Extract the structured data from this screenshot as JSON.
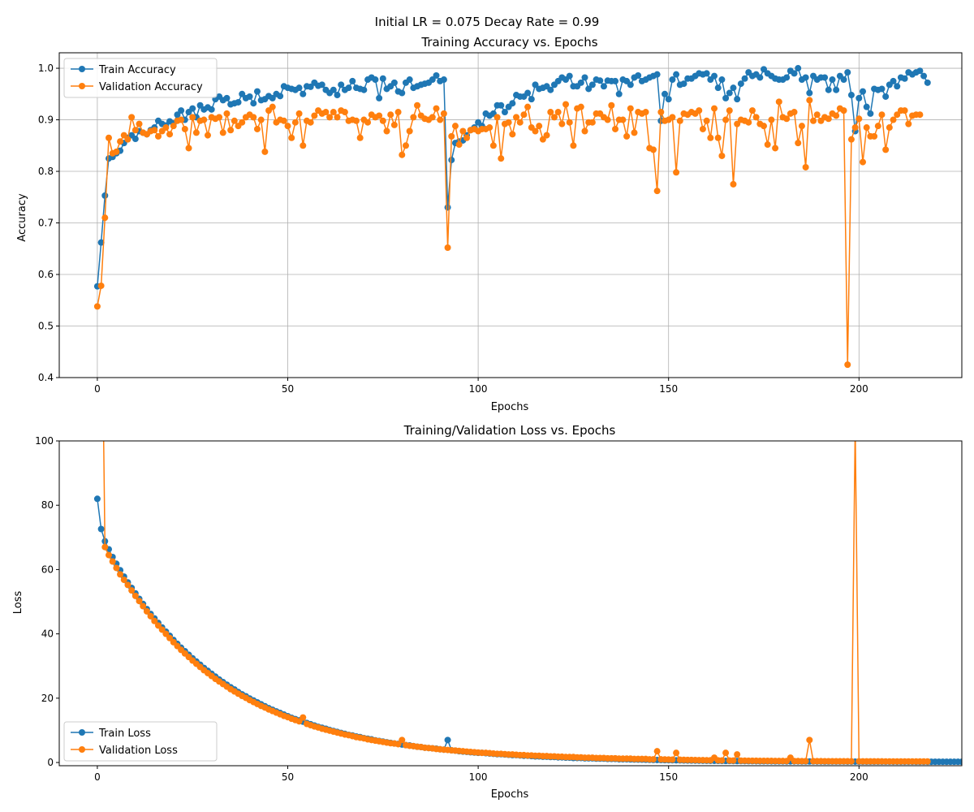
{
  "figure": {
    "suptitle": "Initial LR = 0.075 Decay Rate = 0.99"
  },
  "colors": {
    "train": "#1f77b4",
    "validation": "#ff7f0e",
    "grid": "#b0b0b0",
    "legend_border": "#cccccc"
  },
  "chart_data": [
    {
      "type": "line",
      "title": "Training Accuracy vs. Epochs",
      "xlabel": "Epochs",
      "ylabel": "Accuracy",
      "xlim": [
        -10,
        227
      ],
      "ylim": [
        0.4,
        1.03
      ],
      "xticks": [
        0,
        50,
        100,
        150,
        200
      ],
      "yticks": [
        0.4,
        0.5,
        0.6,
        0.7,
        0.8,
        0.9,
        1.0
      ],
      "ytick_labels": [
        "0.4",
        "0.5",
        "0.6",
        "0.7",
        "0.8",
        "0.9",
        "1.0"
      ],
      "grid": true,
      "legend_position": "upper-left",
      "x_start": 0,
      "series": [
        {
          "name": "Train Accuracy",
          "values": [
            0.577,
            0.662,
            0.753,
            0.825,
            0.828,
            0.835,
            0.84,
            0.855,
            0.865,
            0.87,
            0.863,
            0.878,
            0.875,
            0.872,
            0.88,
            0.885,
            0.898,
            0.892,
            0.889,
            0.897,
            0.893,
            0.91,
            0.918,
            0.9,
            0.915,
            0.922,
            0.905,
            0.928,
            0.92,
            0.924,
            0.92,
            0.94,
            0.945,
            0.938,
            0.942,
            0.93,
            0.932,
            0.934,
            0.95,
            0.942,
            0.945,
            0.932,
            0.955,
            0.938,
            0.94,
            0.946,
            0.942,
            0.95,
            0.946,
            0.965,
            0.962,
            0.96,
            0.958,
            0.962,
            0.95,
            0.965,
            0.964,
            0.972,
            0.966,
            0.968,
            0.958,
            0.952,
            0.958,
            0.948,
            0.968,
            0.958,
            0.962,
            0.975,
            0.962,
            0.96,
            0.958,
            0.978,
            0.982,
            0.978,
            0.942,
            0.98,
            0.96,
            0.965,
            0.972,
            0.955,
            0.952,
            0.972,
            0.978,
            0.962,
            0.965,
            0.968,
            0.97,
            0.972,
            0.978,
            0.986,
            0.975,
            0.978,
            0.73,
            0.822,
            0.855,
            0.858,
            0.86,
            0.87,
            0.88,
            0.885,
            0.895,
            0.888,
            0.912,
            0.908,
            0.912,
            0.928,
            0.928,
            0.915,
            0.925,
            0.932,
            0.948,
            0.945,
            0.945,
            0.952,
            0.94,
            0.968,
            0.96,
            0.962,
            0.965,
            0.958,
            0.968,
            0.975,
            0.982,
            0.978,
            0.985,
            0.965,
            0.965,
            0.972,
            0.982,
            0.96,
            0.968,
            0.978,
            0.976,
            0.965,
            0.976,
            0.975,
            0.975,
            0.95,
            0.978,
            0.975,
            0.968,
            0.982,
            0.986,
            0.975,
            0.978,
            0.982,
            0.985,
            0.988,
            0.898,
            0.95,
            0.94,
            0.978,
            0.988,
            0.968,
            0.97,
            0.98,
            0.98,
            0.985,
            0.99,
            0.988,
            0.99,
            0.978,
            0.985,
            0.962,
            0.978,
            0.942,
            0.952,
            0.962,
            0.94,
            0.97,
            0.98,
            0.992,
            0.985,
            0.988,
            0.982,
            0.998,
            0.99,
            0.985,
            0.98,
            0.978,
            0.978,
            0.982,
            0.995,
            0.99,
            1.0,
            0.978,
            0.982,
            0.952,
            0.985,
            0.978,
            0.982,
            0.982,
            0.958,
            0.978,
            0.958,
            0.985,
            0.978,
            0.992,
            0.948,
            0.878,
            0.942,
            0.955,
            0.925,
            0.912,
            0.96,
            0.958,
            0.96,
            0.945,
            0.968,
            0.975,
            0.965,
            0.982,
            0.98,
            0.992,
            0.988,
            0.992,
            0.995,
            0.985,
            0.972
          ]
        },
        {
          "name": "Validation Accuracy",
          "values": [
            0.538,
            0.578,
            0.71,
            0.865,
            0.835,
            0.838,
            0.858,
            0.87,
            0.862,
            0.905,
            0.88,
            0.892,
            0.875,
            0.872,
            0.878,
            0.88,
            0.868,
            0.878,
            0.885,
            0.872,
            0.888,
            0.898,
            0.9,
            0.882,
            0.845,
            0.905,
            0.875,
            0.898,
            0.9,
            0.87,
            0.905,
            0.902,
            0.905,
            0.875,
            0.912,
            0.88,
            0.898,
            0.888,
            0.895,
            0.905,
            0.91,
            0.905,
            0.882,
            0.9,
            0.838,
            0.918,
            0.925,
            0.895,
            0.9,
            0.898,
            0.888,
            0.865,
            0.895,
            0.912,
            0.85,
            0.898,
            0.895,
            0.908,
            0.918,
            0.912,
            0.915,
            0.905,
            0.915,
            0.905,
            0.918,
            0.915,
            0.898,
            0.9,
            0.898,
            0.865,
            0.9,
            0.895,
            0.91,
            0.905,
            0.908,
            0.898,
            0.878,
            0.91,
            0.89,
            0.915,
            0.832,
            0.85,
            0.878,
            0.905,
            0.928,
            0.908,
            0.902,
            0.9,
            0.905,
            0.922,
            0.9,
            0.912,
            0.652,
            0.868,
            0.888,
            0.852,
            0.878,
            0.865,
            0.88,
            0.882,
            0.878,
            0.882,
            0.882,
            0.885,
            0.85,
            0.905,
            0.825,
            0.892,
            0.895,
            0.872,
            0.905,
            0.895,
            0.91,
            0.925,
            0.885,
            0.878,
            0.888,
            0.862,
            0.87,
            0.915,
            0.905,
            0.915,
            0.892,
            0.93,
            0.895,
            0.85,
            0.922,
            0.925,
            0.878,
            0.895,
            0.895,
            0.912,
            0.912,
            0.905,
            0.9,
            0.928,
            0.882,
            0.9,
            0.9,
            0.868,
            0.922,
            0.875,
            0.915,
            0.912,
            0.915,
            0.845,
            0.842,
            0.762,
            0.915,
            0.898,
            0.9,
            0.905,
            0.798,
            0.898,
            0.912,
            0.91,
            0.915,
            0.912,
            0.918,
            0.882,
            0.898,
            0.865,
            0.922,
            0.865,
            0.83,
            0.9,
            0.918,
            0.775,
            0.892,
            0.9,
            0.898,
            0.895,
            0.918,
            0.905,
            0.892,
            0.888,
            0.852,
            0.9,
            0.845,
            0.935,
            0.905,
            0.902,
            0.912,
            0.915,
            0.855,
            0.888,
            0.808,
            0.938,
            0.898,
            0.91,
            0.898,
            0.905,
            0.902,
            0.912,
            0.908,
            0.922,
            0.918,
            0.425,
            0.862,
            0.885,
            0.902,
            0.818,
            0.885,
            0.868,
            0.868,
            0.888,
            0.91,
            0.842,
            0.885,
            0.9,
            0.91,
            0.918,
            0.918,
            0.892,
            0.908,
            0.91,
            0.91
          ]
        }
      ]
    },
    {
      "type": "line",
      "title": "Training/Validation Loss vs. Epochs",
      "xlabel": "Epochs",
      "ylabel": "Loss",
      "xlim": [
        -10,
        227
      ],
      "ylim": [
        -1,
        100
      ],
      "xticks": [
        0,
        50,
        100,
        150,
        200
      ],
      "yticks": [
        0,
        20,
        40,
        60,
        80,
        100
      ],
      "ytick_labels": [
        "0",
        "20",
        "40",
        "60",
        "80",
        "100"
      ],
      "grid": false,
      "legend_position": "lower-left",
      "x_start": 0,
      "series": [
        {
          "name": "Train Loss",
          "values": [
            82.0,
            72.6,
            68.8,
            66.3,
            63.9,
            61.8,
            59.8,
            57.8,
            56.0,
            54.3,
            52.6,
            50.9,
            49.3,
            47.7,
            46.2,
            44.8,
            43.4,
            42.0,
            40.7,
            39.4,
            38.1,
            36.9,
            35.7,
            34.6,
            33.5,
            32.4,
            31.4,
            30.4,
            29.4,
            28.5,
            27.6,
            26.7,
            25.8,
            25.0,
            24.2,
            23.4,
            22.7,
            21.9,
            21.2,
            20.6,
            19.9,
            19.3,
            18.7,
            18.1,
            17.5,
            16.9,
            16.4,
            15.9,
            15.4,
            14.9,
            14.4,
            13.9,
            13.5,
            13.1,
            12.7,
            12.3,
            11.9,
            11.5,
            11.1,
            10.8,
            10.5,
            10.1,
            9.8,
            9.5,
            9.2,
            8.9,
            8.6,
            8.4,
            8.1,
            7.9,
            7.6,
            7.4,
            7.2,
            6.9,
            6.7,
            6.5,
            6.3,
            6.1,
            5.9,
            5.8,
            5.6,
            5.4,
            5.3,
            5.1,
            4.9,
            4.8,
            4.6,
            4.5,
            4.4,
            4.3,
            4.1,
            4.0,
            7.0,
            3.8,
            3.7,
            3.5,
            3.4,
            3.3,
            3.2,
            3.1,
            3.0,
            3.0,
            2.9,
            2.8,
            2.7,
            2.6,
            2.6,
            2.5,
            2.4,
            2.3,
            2.3,
            2.2,
            2.1,
            2.1,
            2.0,
            1.9,
            1.9,
            1.8,
            1.8,
            1.7,
            1.7,
            1.6,
            1.6,
            1.5,
            1.5,
            1.4,
            1.4,
            1.4,
            1.3,
            1.3,
            1.3,
            1.2,
            1.2,
            1.2,
            1.1,
            1.1,
            1.1,
            1.0,
            1.0,
            1.0,
            0.96,
            0.93,
            0.9,
            0.88,
            0.85,
            0.83,
            0.8,
            0.78,
            0.76,
            0.74,
            0.72,
            0.7,
            0.68,
            0.66,
            0.64,
            0.62,
            0.6,
            0.59,
            0.57,
            0.56,
            0.54,
            0.53,
            0.52,
            0.5,
            0.49,
            0.48,
            0.47,
            0.46,
            0.45,
            0.44,
            0.43,
            0.42,
            0.41,
            0.4,
            0.39,
            0.38,
            0.38,
            0.37,
            0.36,
            0.36,
            0.35,
            0.34,
            0.34,
            0.33,
            0.33,
            0.32,
            0.32,
            0.31,
            0.31,
            0.3,
            0.3,
            0.29,
            0.29,
            0.29,
            0.28,
            0.28,
            0.28,
            0.27,
            0.27,
            0.27,
            0.26,
            0.26,
            0.26,
            0.26,
            0.25,
            0.25,
            0.25,
            0.25,
            0.25,
            0.24,
            0.24,
            0.24,
            0.24,
            0.24,
            0.24,
            0.23,
            0.23,
            0.23,
            0.23,
            0.23,
            0.23,
            0.23,
            0.22,
            0.22,
            0.22,
            0.22,
            0.22,
            0.22
          ]
        },
        {
          "name": "Validation Loss",
          "values": [
            null,
            null,
            67.0,
            64.5,
            62.5,
            60.5,
            58.5,
            56.8,
            55.2,
            53.5,
            51.8,
            50.2,
            48.6,
            47.0,
            45.5,
            44.0,
            42.6,
            41.3,
            40.0,
            38.7,
            37.4,
            36.2,
            35.0,
            33.9,
            32.8,
            31.7,
            30.7,
            29.7,
            28.7,
            27.8,
            26.9,
            26.0,
            25.2,
            24.4,
            23.6,
            22.8,
            22.1,
            21.4,
            20.7,
            20.1,
            19.4,
            18.8,
            18.2,
            17.6,
            17.1,
            16.5,
            16.0,
            15.5,
            15.0,
            14.5,
            14.1,
            13.6,
            13.2,
            12.8,
            14.0,
            12.0,
            11.6,
            11.2,
            10.9,
            10.5,
            10.2,
            9.9,
            9.6,
            9.3,
            9.0,
            8.7,
            8.5,
            8.2,
            7.9,
            7.7,
            7.5,
            7.2,
            7.0,
            6.8,
            6.6,
            6.4,
            6.2,
            6.0,
            5.9,
            5.7,
            7.0,
            5.4,
            5.2,
            5.1,
            4.9,
            4.8,
            4.6,
            4.5,
            4.4,
            4.2,
            4.1,
            4.0,
            3.9,
            3.8,
            3.7,
            3.6,
            3.5,
            3.4,
            3.3,
            3.2,
            3.1,
            3.0,
            3.0,
            2.9,
            2.8,
            2.7,
            2.7,
            2.6,
            2.5,
            2.5,
            2.4,
            2.3,
            2.3,
            2.2,
            2.2,
            2.1,
            2.1,
            2.0,
            2.0,
            1.9,
            1.9,
            1.8,
            1.8,
            1.7,
            1.7,
            1.7,
            1.6,
            1.6,
            1.5,
            1.5,
            1.5,
            1.4,
            1.4,
            1.4,
            1.3,
            1.3,
            1.3,
            1.2,
            1.2,
            1.2,
            1.2,
            1.1,
            1.1,
            1.1,
            1.1,
            1.0,
            1.0,
            3.5,
            0.98,
            0.95,
            0.92,
            0.9,
            3.0,
            0.85,
            0.83,
            0.81,
            0.79,
            0.77,
            0.75,
            0.73,
            0.71,
            0.7,
            1.5,
            0.67,
            0.65,
            3.0,
            0.62,
            0.61,
            2.5,
            0.58,
            0.57,
            0.56,
            0.55,
            0.54,
            0.53,
            0.52,
            0.51,
            0.5,
            0.49,
            0.48,
            0.47,
            0.46,
            1.5,
            0.45,
            0.44,
            0.43,
            0.43,
            7.0,
            0.42,
            0.41,
            0.41,
            0.4,
            0.4,
            0.39,
            0.39,
            0.38,
            0.38,
            0.38,
            0.37,
            105,
            0.37,
            0.36,
            0.36,
            0.36,
            0.35,
            0.35,
            0.35,
            0.34,
            0.34,
            0.34,
            0.34,
            0.33,
            0.33,
            0.33,
            0.33,
            0.32,
            0.32,
            0.32,
            0.32
          ]
        }
      ]
    }
  ]
}
